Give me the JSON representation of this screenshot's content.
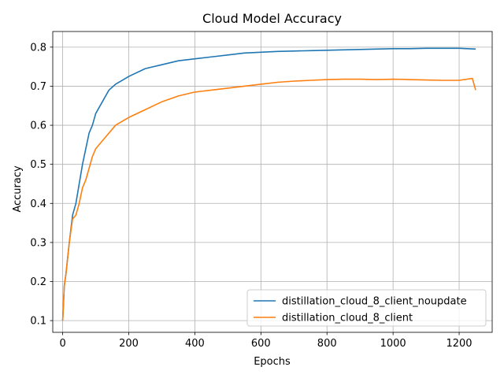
{
  "chart_data": {
    "type": "line",
    "title": "Cloud Model Accuracy",
    "xlabel": "Epochs",
    "ylabel": "Accuracy",
    "xlim": [
      -30,
      1300
    ],
    "ylim": [
      0.07,
      0.84
    ],
    "xticks": [
      0,
      200,
      400,
      600,
      800,
      1000,
      1200
    ],
    "yticks": [
      0.1,
      0.2,
      0.3,
      0.4,
      0.5,
      0.6,
      0.7,
      0.8
    ],
    "grid": true,
    "legend_position": "lower-right",
    "series": [
      {
        "name": "distillation_cloud_8_client_noupdate",
        "color": "#1f77b4",
        "x": [
          0,
          5,
          10,
          20,
          30,
          40,
          50,
          60,
          70,
          80,
          90,
          100,
          120,
          140,
          160,
          180,
          200,
          250,
          300,
          350,
          400,
          450,
          500,
          550,
          600,
          650,
          700,
          750,
          800,
          850,
          900,
          950,
          1000,
          1050,
          1100,
          1150,
          1200,
          1250
        ],
        "y": [
          0.1,
          0.19,
          0.22,
          0.3,
          0.37,
          0.4,
          0.45,
          0.5,
          0.54,
          0.58,
          0.6,
          0.63,
          0.66,
          0.69,
          0.705,
          0.715,
          0.725,
          0.745,
          0.755,
          0.765,
          0.77,
          0.775,
          0.78,
          0.785,
          0.787,
          0.789,
          0.79,
          0.791,
          0.792,
          0.793,
          0.794,
          0.795,
          0.796,
          0.796,
          0.797,
          0.797,
          0.797,
          0.795
        ]
      },
      {
        "name": "distillation_cloud_8_client",
        "color": "#ff7f0e",
        "x": [
          0,
          5,
          10,
          20,
          30,
          40,
          50,
          60,
          70,
          80,
          90,
          100,
          120,
          140,
          160,
          180,
          200,
          250,
          300,
          350,
          400,
          450,
          500,
          550,
          600,
          650,
          700,
          750,
          800,
          850,
          900,
          950,
          1000,
          1050,
          1100,
          1150,
          1200,
          1240,
          1250
        ],
        "y": [
          0.1,
          0.19,
          0.22,
          0.3,
          0.36,
          0.37,
          0.4,
          0.44,
          0.46,
          0.49,
          0.52,
          0.54,
          0.56,
          0.58,
          0.6,
          0.61,
          0.62,
          0.64,
          0.66,
          0.675,
          0.685,
          0.69,
          0.695,
          0.7,
          0.705,
          0.71,
          0.713,
          0.715,
          0.717,
          0.718,
          0.718,
          0.717,
          0.718,
          0.717,
          0.716,
          0.715,
          0.715,
          0.72,
          0.69
        ]
      }
    ]
  }
}
